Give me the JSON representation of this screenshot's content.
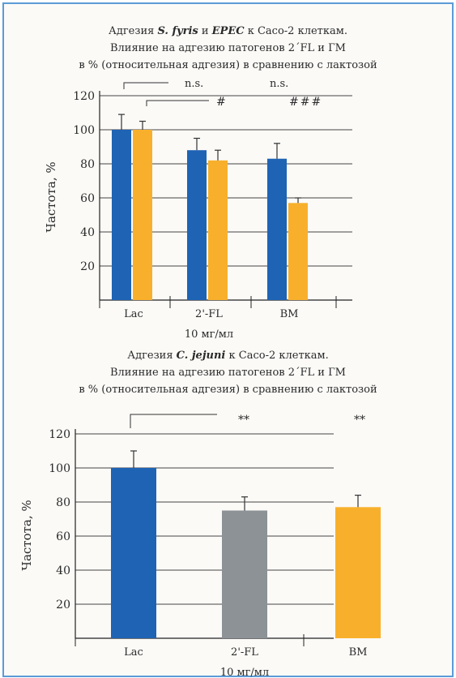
{
  "colors": {
    "blue": "#1e63b4",
    "orange": "#f8b02c",
    "gray": "#8c9296",
    "frame": "#5b9bd5"
  },
  "chart_data": [
    {
      "type": "bar",
      "title_lines": [
        [
          "Адгезия ",
          "S. fyris",
          " и ",
          "EPEC",
          " к Caco-2 клеткам."
        ],
        "Влияние на адгезию патогенов 2´FL и ГМ",
        "в % (относительная адгезия) в сравнению с лактозой"
      ],
      "xlabel": "10 мг/мл",
      "ylabel": "Частота, %",
      "ylim": [
        0,
        120
      ],
      "yticks": [
        20,
        40,
        60,
        80,
        100,
        120
      ],
      "categories": [
        "Lac",
        "2'-FL",
        "BM"
      ],
      "series": [
        {
          "color": "blue",
          "values": [
            100,
            88,
            83
          ],
          "errors": [
            9,
            7,
            9
          ]
        },
        {
          "color": "orange",
          "values": [
            100,
            82,
            57
          ],
          "errors": [
            5,
            6,
            3
          ]
        }
      ],
      "annotations": [
        "n.s.",
        "n.s.",
        "#",
        "###"
      ],
      "grid": true
    },
    {
      "type": "bar",
      "title_lines": [
        [
          "Адгезия ",
          "C. jejuni",
          " к Caco-2 клеткам."
        ],
        "Влияние на адгезию патогенов 2´FL и ГМ",
        "в % (относительная адгезия) в сравнению с лактозой"
      ],
      "xlabel": "10 мг/мл",
      "ylabel": "Частота, %",
      "ylim": [
        0,
        120
      ],
      "yticks": [
        20,
        40,
        60,
        80,
        100,
        120
      ],
      "categories": [
        "Lac",
        "2'-FL",
        "BM"
      ],
      "values": [
        100,
        75,
        77
      ],
      "errors": [
        10,
        8,
        7
      ],
      "bar_colors": [
        "blue",
        "gray",
        "orange"
      ],
      "annotations": [
        "**",
        "**"
      ],
      "grid": true
    }
  ]
}
